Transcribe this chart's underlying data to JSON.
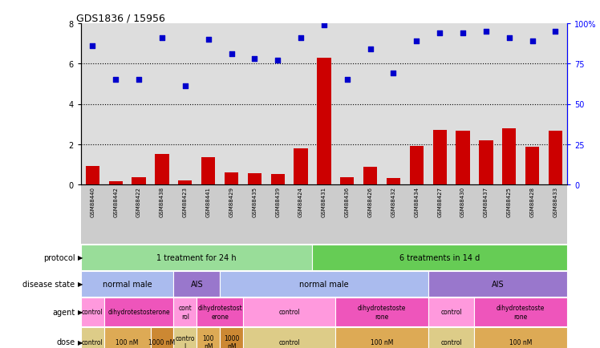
{
  "title": "GDS1836 / 15956",
  "samples": [
    "GSM88440",
    "GSM88442",
    "GSM88422",
    "GSM88438",
    "GSM88423",
    "GSM88441",
    "GSM88429",
    "GSM88435",
    "GSM88439",
    "GSM88424",
    "GSM88431",
    "GSM88436",
    "GSM88426",
    "GSM88432",
    "GSM88434",
    "GSM88427",
    "GSM88430",
    "GSM88437",
    "GSM88425",
    "GSM88428",
    "GSM88433"
  ],
  "log2_ratio": [
    0.9,
    0.15,
    0.35,
    1.5,
    0.2,
    1.35,
    0.6,
    0.55,
    0.5,
    1.8,
    6.3,
    0.35,
    0.85,
    0.3,
    1.9,
    2.7,
    2.65,
    2.2,
    2.8,
    1.85,
    2.65
  ],
  "percentile": [
    86,
    65,
    65,
    91,
    61,
    90,
    81,
    78,
    77,
    91,
    99,
    65,
    84,
    69,
    89,
    94,
    94,
    95,
    91,
    89,
    95
  ],
  "ylim_left": [
    0,
    8
  ],
  "ylim_right": [
    0,
    100
  ],
  "yticks_left": [
    0,
    2,
    4,
    6,
    8
  ],
  "yticks_right": [
    0,
    25,
    50,
    75,
    100
  ],
  "bar_color": "#cc0000",
  "scatter_color": "#0000cc",
  "background_color": "#ffffff",
  "ax_background": "#dddddd",
  "protocol_groups": [
    {
      "label": "1 treatment for 24 h",
      "start": 0,
      "end": 9,
      "color": "#99dd99"
    },
    {
      "label": "6 treatments in 14 d",
      "start": 10,
      "end": 20,
      "color": "#66cc55"
    }
  ],
  "disease_groups": [
    {
      "label": "normal male",
      "start": 0,
      "end": 3,
      "color": "#aabbee"
    },
    {
      "label": "AIS",
      "start": 4,
      "end": 5,
      "color": "#9977cc"
    },
    {
      "label": "normal male",
      "start": 6,
      "end": 14,
      "color": "#aabbee"
    },
    {
      "label": "AIS",
      "start": 15,
      "end": 20,
      "color": "#9977cc"
    }
  ],
  "agent_groups": [
    {
      "label": "control",
      "start": 0,
      "end": 0,
      "color": "#ff99dd"
    },
    {
      "label": "dihydrotestosterone",
      "start": 1,
      "end": 3,
      "color": "#ee55bb"
    },
    {
      "label": "cont\nrol",
      "start": 4,
      "end": 4,
      "color": "#ff99dd"
    },
    {
      "label": "dihydrotestost\nerone",
      "start": 5,
      "end": 6,
      "color": "#ee55bb"
    },
    {
      "label": "control",
      "start": 7,
      "end": 10,
      "color": "#ff99dd"
    },
    {
      "label": "dihydrotestoste\nrone",
      "start": 11,
      "end": 14,
      "color": "#ee55bb"
    },
    {
      "label": "control",
      "start": 15,
      "end": 16,
      "color": "#ff99dd"
    },
    {
      "label": "dihydrotestoste\nrone",
      "start": 17,
      "end": 20,
      "color": "#ee55bb"
    }
  ],
  "dose_groups": [
    {
      "label": "control",
      "start": 0,
      "end": 0,
      "color": "#ddcc88"
    },
    {
      "label": "100 nM",
      "start": 1,
      "end": 2,
      "color": "#ddaa55"
    },
    {
      "label": "1000 nM",
      "start": 3,
      "end": 3,
      "color": "#cc8833"
    },
    {
      "label": "contro\nl",
      "start": 4,
      "end": 4,
      "color": "#ddcc88"
    },
    {
      "label": "100\nnM",
      "start": 5,
      "end": 5,
      "color": "#ddaa55"
    },
    {
      "label": "1000\nnM",
      "start": 6,
      "end": 6,
      "color": "#cc8833"
    },
    {
      "label": "control",
      "start": 7,
      "end": 10,
      "color": "#ddcc88"
    },
    {
      "label": "100 nM",
      "start": 11,
      "end": 14,
      "color": "#ddaa55"
    },
    {
      "label": "control",
      "start": 15,
      "end": 16,
      "color": "#ddcc88"
    },
    {
      "label": "100 nM",
      "start": 17,
      "end": 20,
      "color": "#ddaa55"
    }
  ],
  "row_labels": [
    "protocol",
    "disease state",
    "agent",
    "dose"
  ]
}
